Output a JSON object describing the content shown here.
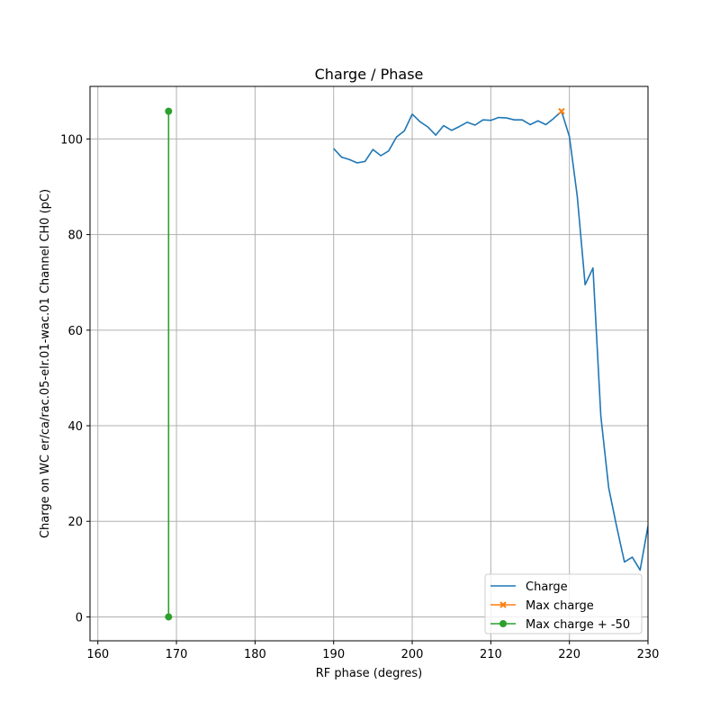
{
  "chart_data": {
    "type": "line",
    "title": "Charge / Phase",
    "xlabel": "RF phase (degres)",
    "ylabel": "Charge on WC er/ca/rac.05-elr.01-wac.01 Channel CH0 (pC)",
    "xlim": [
      159,
      230
    ],
    "ylim": [
      -5,
      111
    ],
    "xticks": [
      160,
      170,
      180,
      190,
      200,
      210,
      220,
      230
    ],
    "yticks": [
      0,
      20,
      40,
      60,
      80,
      100
    ],
    "grid": true,
    "legend_position": "lower-right",
    "series": [
      {
        "name": "Charge",
        "color": "#1f77b4",
        "marker": "none",
        "x": [
          190,
          191,
          192,
          193,
          194,
          195,
          196,
          197,
          198,
          199,
          200,
          201,
          202,
          203,
          204,
          205,
          206,
          207,
          208,
          209,
          210,
          211,
          212,
          213,
          214,
          215,
          216,
          217,
          218,
          219,
          220,
          221,
          222,
          223,
          224,
          225,
          226,
          227,
          228,
          229,
          230
        ],
        "y": [
          98.0,
          96.2,
          95.7,
          95.0,
          95.3,
          97.8,
          96.5,
          97.5,
          100.4,
          101.7,
          105.2,
          103.6,
          102.5,
          100.8,
          102.8,
          101.8,
          102.6,
          103.5,
          102.9,
          104.0,
          103.9,
          104.5,
          104.4,
          104.0,
          104.0,
          103.0,
          103.8,
          103.0,
          104.3,
          105.8,
          100.5,
          88.0,
          69.5,
          73.0,
          42.0,
          27.0,
          19.0,
          11.5,
          12.5,
          9.8,
          19.0
        ]
      },
      {
        "name": "Max charge",
        "color": "#ff7f0e",
        "marker": "x",
        "x": [
          219
        ],
        "y": [
          105.8
        ]
      },
      {
        "name": "Max charge + -50",
        "color": "#2ca02c",
        "marker": "o",
        "x": [
          169,
          169
        ],
        "y": [
          105.8,
          0
        ]
      }
    ]
  }
}
